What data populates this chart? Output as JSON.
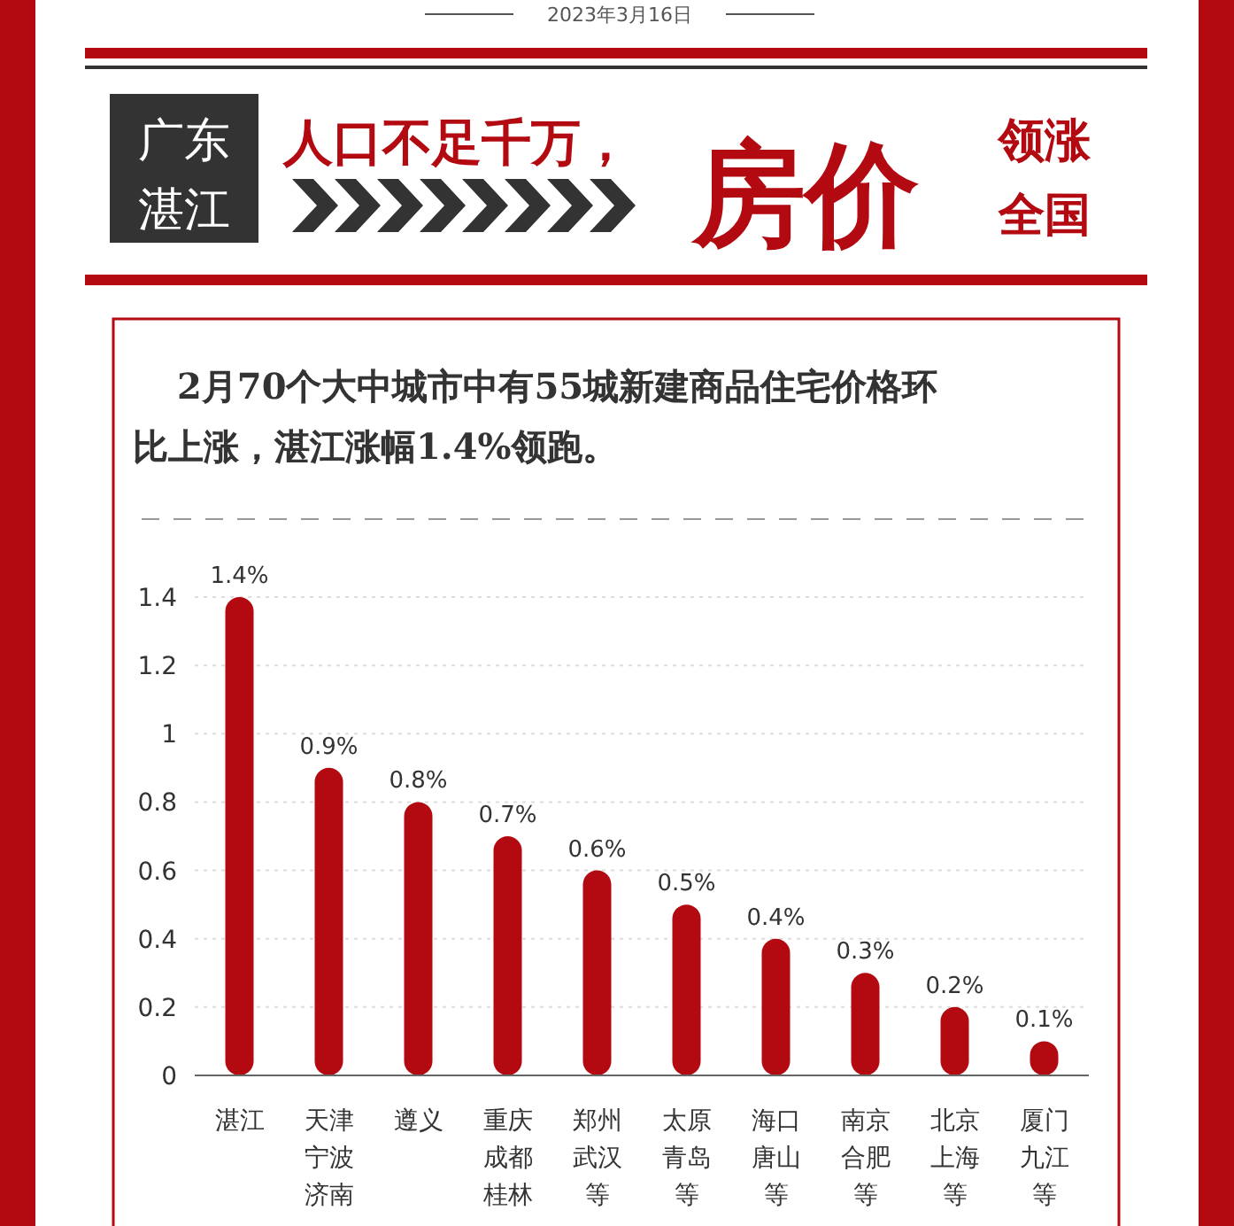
{
  "chart_data": {
    "type": "bar",
    "title": "人口不足千万，",
    "subtitle": "2月70个大中城市中有55城新建商品住宅价格环比上涨，湛江涨幅1.4%领跑。",
    "annotations": [
      "2023年3月16日",
      "广东",
      "湛江",
      "房价",
      "领涨",
      "全国"
    ],
    "categories": [
      "湛江",
      "天津宁波济南",
      "遵义",
      "重庆成都桂林",
      "郑州武汉等",
      "太原青岛等",
      "海口唐山等",
      "南京合肥等",
      "北京上海等",
      "厦门九江等"
    ],
    "values": [
      1.4,
      0.9,
      0.8,
      0.7,
      0.6,
      0.5,
      0.4,
      0.3,
      0.2,
      0.1
    ],
    "value_labels": [
      "1.4%",
      "0.9%",
      "0.8%",
      "0.7%",
      "0.6%",
      "0.5%",
      "0.4%",
      "0.3%",
      "0.2%",
      "0.1%"
    ],
    "color": "#b30a12",
    "ylim": [
      0,
      1.4
    ],
    "yticks": [
      0,
      0.2,
      0.4,
      0.6,
      0.8,
      1,
      1.2,
      1.4
    ],
    "grid": "y"
  }
}
